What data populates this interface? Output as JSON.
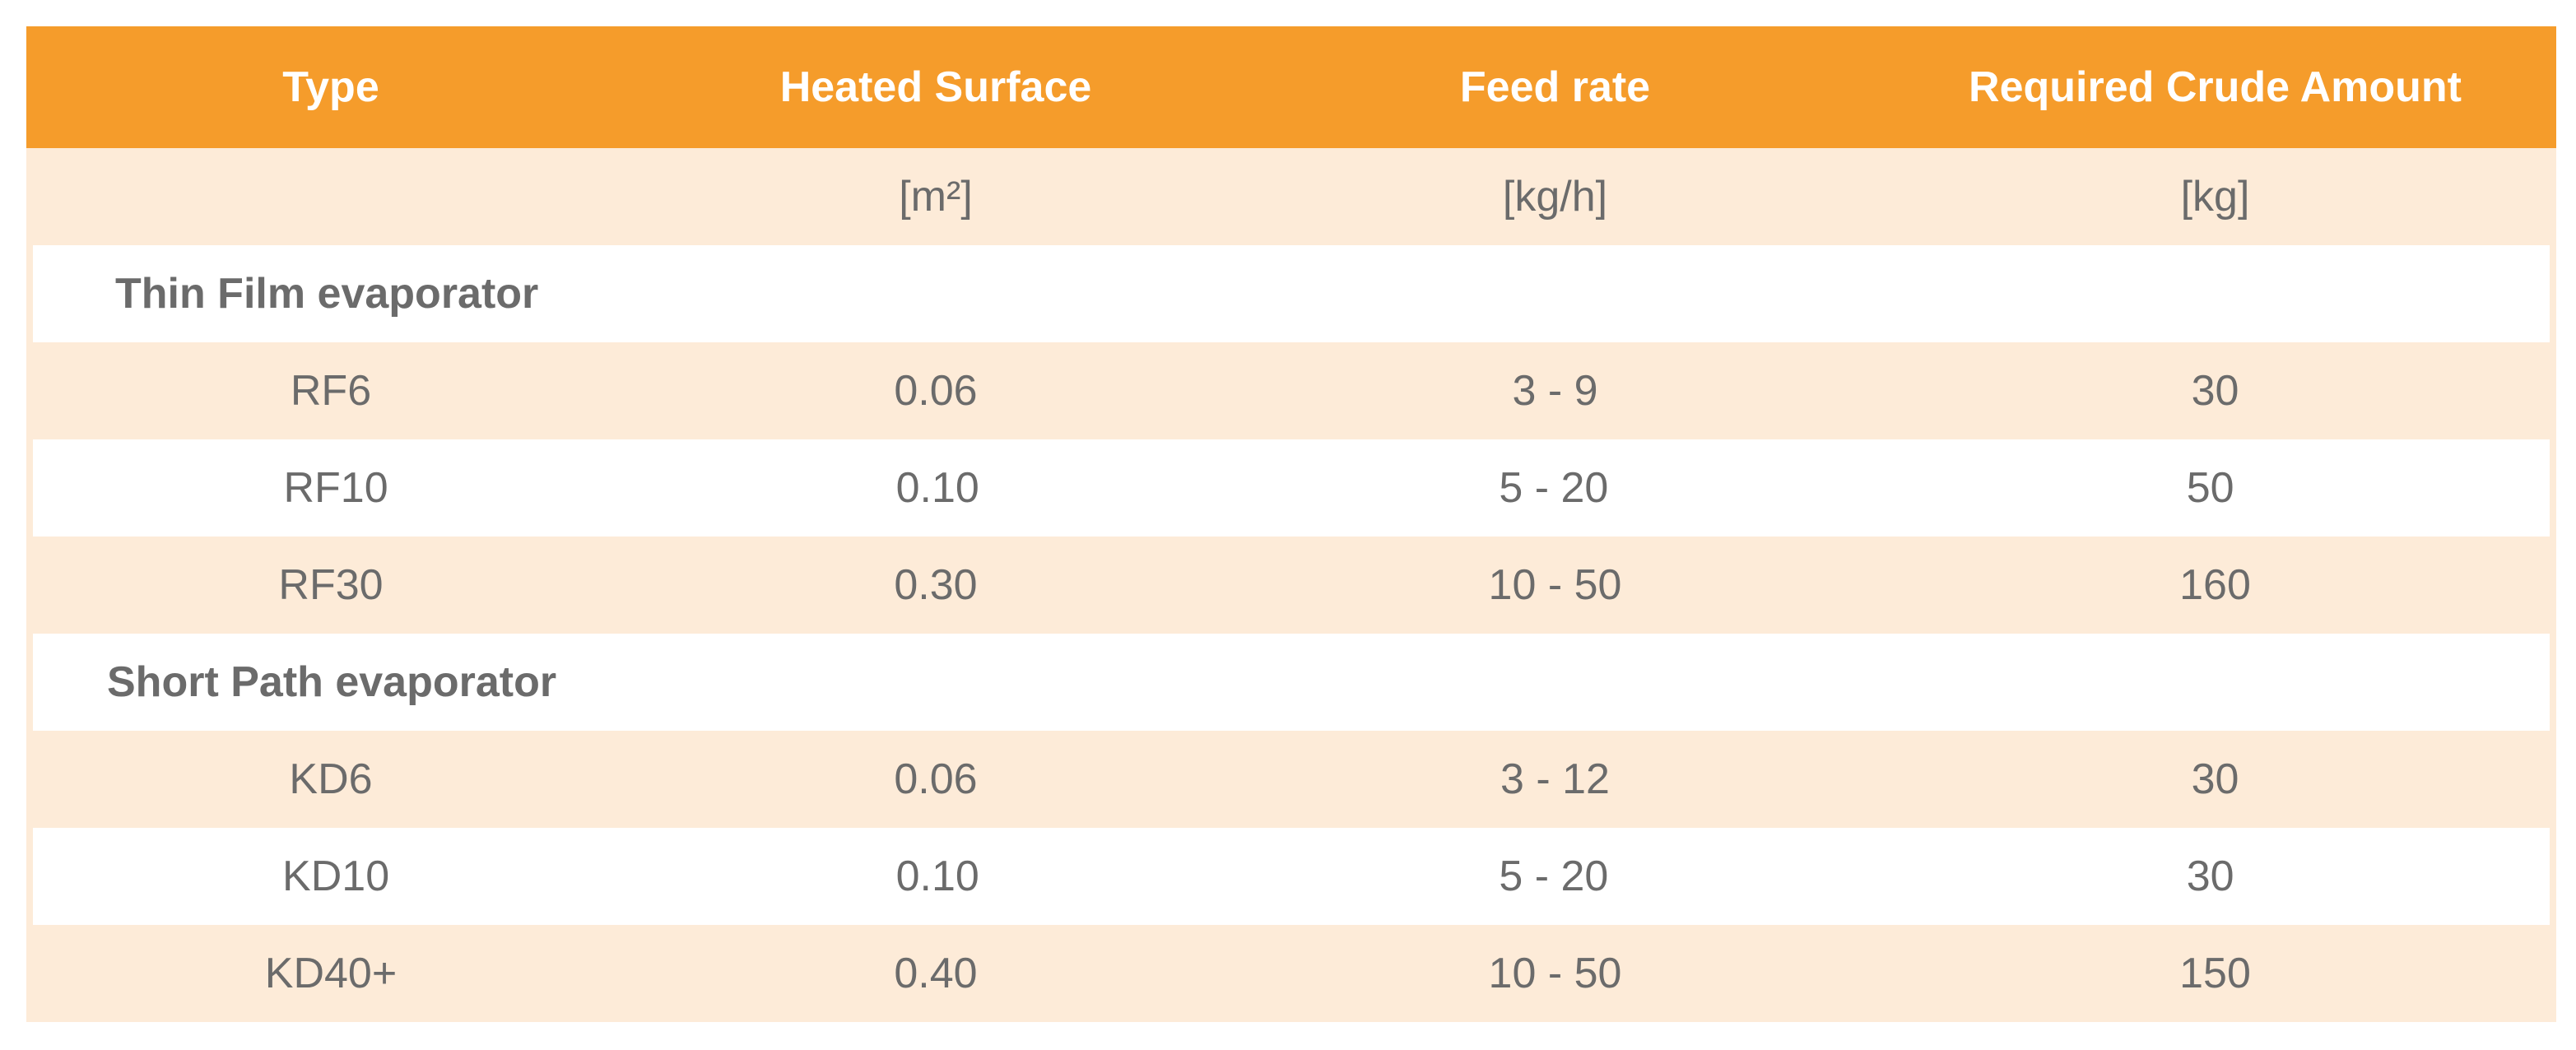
{
  "table": {
    "headers": [
      "Type",
      "Heated Surface",
      "Feed rate",
      "Required Crude Amount"
    ],
    "units": [
      "",
      "[m²]",
      "[kg/h]",
      "[kg]"
    ],
    "sections": [
      {
        "title": "Thin Film evaporator",
        "rows": [
          [
            "RF6",
            "0.06",
            "3 - 9",
            "30"
          ],
          [
            "RF10",
            "0.10",
            "5 - 20",
            "50"
          ],
          [
            "RF30",
            "0.30",
            "10 - 50",
            "160"
          ]
        ]
      },
      {
        "title": "Short Path evaporator",
        "rows": [
          [
            "KD6",
            "0.06",
            "3 - 12",
            "30"
          ],
          [
            "KD10",
            "0.10",
            "5 - 20",
            "30"
          ],
          [
            "KD40+",
            "0.40",
            "10 - 50",
            "150"
          ]
        ]
      }
    ]
  },
  "colors": {
    "header_bg": "#f59c2b",
    "shade_bg": "#fdebd8",
    "text": "#6b6b6b",
    "header_text": "#ffffff"
  }
}
